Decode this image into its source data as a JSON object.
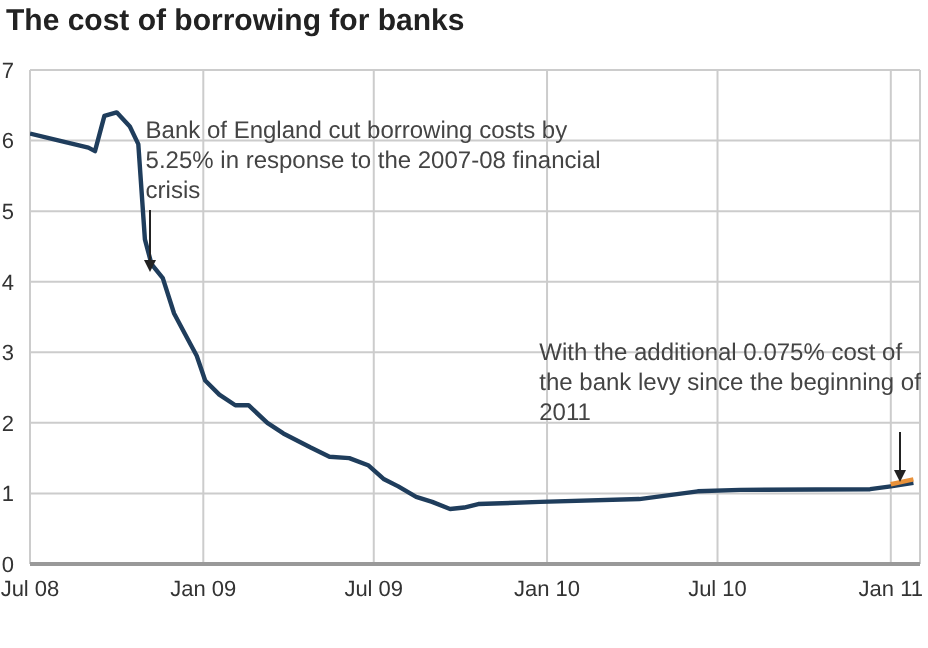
{
  "chart_data": {
    "type": "line",
    "title": "The cost of borrowing for banks",
    "series": [
      {
        "color": "#1f3d5c",
        "x": [
          "2008-07-01",
          "2008-08-01",
          "2008-09-01",
          "2008-09-08",
          "2008-09-18",
          "2008-10-01",
          "2008-10-15",
          "2008-10-24",
          "2008-10-31",
          "2008-11-07",
          "2008-11-19",
          "2008-12-01",
          "2008-12-15",
          "2008-12-25",
          "2009-01-03",
          "2009-01-18",
          "2009-02-04",
          "2009-02-18",
          "2009-03-10",
          "2009-03-27",
          "2009-04-25",
          "2009-05-15",
          "2009-06-05",
          "2009-06-25",
          "2009-07-12",
          "2009-07-27",
          "2009-08-15",
          "2009-09-01",
          "2009-09-20",
          "2009-10-05",
          "2009-10-20",
          "2009-12-25",
          "2010-04-09",
          "2010-06-10",
          "2010-07-25",
          "2010-12-10",
          "2011-01-01",
          "2011-01-25"
        ],
        "values": [
          6.1,
          6.0,
          5.9,
          5.85,
          6.35,
          6.4,
          6.2,
          5.95,
          4.6,
          4.25,
          4.05,
          3.55,
          3.2,
          2.95,
          2.6,
          2.4,
          2.25,
          2.25,
          2.0,
          1.85,
          1.65,
          1.52,
          1.5,
          1.4,
          1.2,
          1.1,
          0.95,
          0.88,
          0.78,
          0.8,
          0.85,
          0.88,
          0.92,
          1.03,
          1.05,
          1.06,
          1.1,
          1.15
        ]
      },
      {
        "color": "#e8913a",
        "x": [
          "2011-01-01",
          "2011-01-25"
        ],
        "values": [
          1.13,
          1.2
        ]
      }
    ],
    "xlim": [
      "2008-07-01",
      "2011-02-01"
    ],
    "xticks": [
      {
        "value": "2008-07-01",
        "label": "Jul 08"
      },
      {
        "value": "2009-01-01",
        "label": "Jan 09"
      },
      {
        "value": "2009-07-01",
        "label": "Jul 09"
      },
      {
        "value": "2010-01-01",
        "label": "Jan 10"
      },
      {
        "value": "2010-07-01",
        "label": "Jul 10"
      },
      {
        "value": "2011-01-01",
        "label": "Jan 11"
      }
    ],
    "ylim": [
      0,
      7
    ],
    "yticks": [
      0,
      1,
      2,
      3,
      4,
      5,
      6,
      7
    ],
    "grid": true,
    "annotations": [
      {
        "text": "Bank of England cut borrowing costs by 5.25% in response to the 2007-08 financial crisis",
        "x": "2008-11-05",
        "y": 4.15
      },
      {
        "text": "With the additional 0.075% cost of the bank levy since the beginning of 2011",
        "x": "2011-01-10",
        "y": 1.17
      }
    ]
  }
}
